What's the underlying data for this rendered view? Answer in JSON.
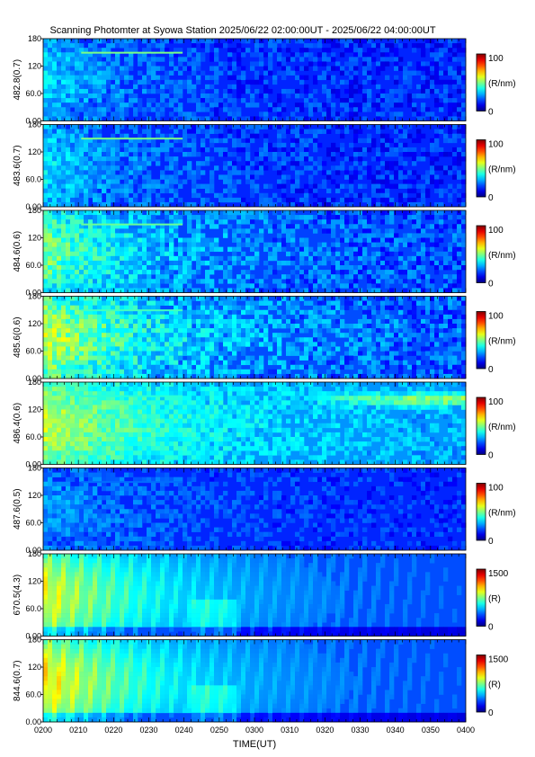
{
  "chart_data": {
    "type": "heatmap",
    "title": "Scanning Photomter at Syowa Station 2025/06/22 02:00:00UT - 2025/06/22 04:00:00UT",
    "xlabel": "TIME(UT)",
    "x_ticks": [
      "0200",
      "0210",
      "0220",
      "0230",
      "0240",
      "0250",
      "0300",
      "0310",
      "0320",
      "0330",
      "0340",
      "0350",
      "0400"
    ],
    "y_ticks": [
      "0.00",
      "60.0",
      "120",
      "180"
    ],
    "y_range": [
      0,
      180
    ],
    "panels": [
      {
        "ylabel": "482.8(0.7)",
        "cbar_max": "100",
        "cbar_min": "0",
        "cbar_unit": "(R/nm)",
        "base": 0.16,
        "front": 0.18,
        "fdecay": 0.22,
        "streak": 0.14,
        "late": 0.0,
        "speck": 0.25,
        "diffuse": 0.0
      },
      {
        "ylabel": "483.6(0.7)",
        "cbar_max": "100",
        "cbar_min": "0",
        "cbar_unit": "(R/nm)",
        "base": 0.16,
        "front": 0.2,
        "fdecay": 0.22,
        "streak": 0.14,
        "late": 0.0,
        "speck": 0.25,
        "diffuse": 0.0
      },
      {
        "ylabel": "484.6(0.6)",
        "cbar_max": "100",
        "cbar_min": "0",
        "cbar_unit": "(R/nm)",
        "base": 0.19,
        "front": 0.3,
        "fdecay": 0.3,
        "streak": 0.12,
        "late": 0.0,
        "speck": 0.3,
        "diffuse": 0.0
      },
      {
        "ylabel": "485.6(0.6)",
        "cbar_max": "100",
        "cbar_min": "0",
        "cbar_unit": "(R/nm)",
        "base": 0.2,
        "front": 0.38,
        "fdecay": 0.32,
        "streak": 0.1,
        "late": 0.0,
        "speck": 0.32,
        "diffuse": 0.0
      },
      {
        "ylabel": "486.4(0.6)",
        "cbar_max": "100",
        "cbar_min": "0",
        "cbar_unit": "(R/nm)",
        "base": 0.27,
        "front": 0.3,
        "fdecay": 0.35,
        "streak": 0.06,
        "late": 0.28,
        "speck": 0.22,
        "diffuse": 0.0
      },
      {
        "ylabel": "487.6(0.5)",
        "cbar_max": "100",
        "cbar_min": "0",
        "cbar_unit": "(R/nm)",
        "base": 0.16,
        "front": 0.12,
        "fdecay": 0.3,
        "streak": 0.03,
        "late": 0.0,
        "speck": 0.2,
        "diffuse": 0.0
      },
      {
        "ylabel": "670.5(4.3)",
        "cbar_max": "1500",
        "cbar_min": "0",
        "cbar_unit": "(R)",
        "base": 0.2,
        "front": 0.36,
        "fdecay": 0.3,
        "streak": 0.0,
        "late": 0.0,
        "speck": 0.0,
        "diffuse": 1.0
      },
      {
        "ylabel": "844.6(0.7)",
        "cbar_max": "1500",
        "cbar_min": "0",
        "cbar_unit": "(R)",
        "base": 0.2,
        "front": 0.4,
        "fdecay": 0.3,
        "streak": 0.0,
        "late": 0.0,
        "speck": 0.0,
        "diffuse": 1.0
      }
    ]
  }
}
